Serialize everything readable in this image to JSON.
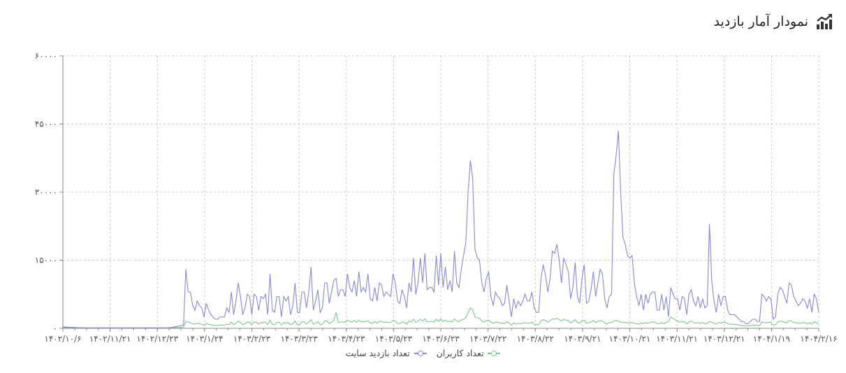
{
  "header": {
    "title": "نمودار آمار بازدید",
    "icon": "trending-chart-icon"
  },
  "colors": {
    "site_visits": "#8a86cf",
    "users": "#7fc491",
    "grid": "#cccccc",
    "axis": "#888888"
  },
  "chart_data": {
    "type": "line",
    "title": "نمودار آمار بازدید",
    "x_tick_labels": [
      "۱۴۰۲/۱۰/۶",
      "۱۴۰۲/۱۱/۲۱",
      "۱۴۰۲/۱۲/۲۳",
      "۱۴۰۳/۱/۲۴",
      "۱۴۰۳/۲/۲۳",
      "۱۴۰۳/۳/۲۳",
      "۱۴۰۳/۴/۲۳",
      "۱۴۰۳/۵/۲۳",
      "۱۴۰۳/۶/۲۳",
      "۱۴۰۳/۷/۲۲",
      "۱۴۰۳/۸/۲۲",
      "۱۴۰۳/۹/۲۱",
      "۱۴۰۳/۱۰/۲۱",
      "۱۴۰۳/۱۱/۲۱",
      "۱۴۰۳/۱۲/۲۱",
      "۱۴۰۴/۱/۱۹",
      "۱۴۰۴/۲/۱۶"
    ],
    "y_tick_labels": [
      "۰",
      "۱۵۰۰۰",
      "۳۰۰۰۰",
      "۴۵۰۰۰",
      "۶۰۰۰۰"
    ],
    "y_ticks": [
      0,
      15000,
      30000,
      45000,
      60000
    ],
    "ylim": [
      0,
      60000
    ],
    "grid": true,
    "legend": "bottom-center",
    "series": [
      {
        "name": "تعداد بازدید سایت",
        "color": "#8a86cf",
        "values": [
          300,
          300,
          250,
          200,
          200,
          200,
          150,
          150,
          120,
          100,
          100,
          100,
          100,
          100,
          100,
          100,
          100,
          100,
          100,
          100,
          100,
          100,
          100,
          100,
          100,
          100,
          100,
          100,
          100,
          100,
          100,
          100,
          100,
          100,
          100,
          100,
          100,
          100,
          100,
          100,
          100,
          100,
          100,
          100,
          100,
          100,
          100,
          150,
          200,
          300,
          400,
          500,
          600,
          700,
          13000,
          8000,
          8000,
          5000,
          4000,
          6000,
          5000,
          4500,
          2500,
          5500,
          4000,
          3000,
          2500,
          2000,
          2000,
          2500,
          2500,
          2500,
          4500,
          3500,
          8000,
          3000,
          6000,
          10000,
          7000,
          3000,
          4500,
          7500,
          7000,
          3000,
          7500,
          7000,
          4000,
          7000,
          6500,
          7500,
          3000,
          12000,
          4000,
          3500,
          7000,
          7000,
          2500,
          7000,
          6000,
          7000,
          3000,
          5000,
          10000,
          3500,
          3500,
          8000,
          8000,
          4500,
          8000,
          13500,
          4000,
          6000,
          8500,
          3500,
          4500,
          10000,
          10000,
          5500,
          8000,
          10500,
          11000,
          7000,
          8500,
          8500,
          7000,
          12000,
          9000,
          8000,
          10500,
          7000,
          12500,
          8000,
          9000,
          8000,
          12000,
          6500,
          6000,
          9000,
          6000,
          10000,
          9500,
          7000,
          8000,
          7500,
          7000,
          12000,
          10000,
          6000,
          5500,
          8500,
          7000,
          4500,
          10000,
          8000,
          15500,
          7500,
          10000,
          15500,
          10000,
          16500,
          8500,
          9000,
          9000,
          8000,
          16000,
          9500,
          16500,
          9000,
          13500,
          8500,
          10500,
          8000,
          17000,
          10000,
          9000,
          13000,
          16000,
          19000,
          30000,
          37000,
          33000,
          17500,
          15500,
          15000,
          10000,
          8000,
          11000,
          12500,
          7000,
          5000,
          8000,
          7000,
          6500,
          5000,
          5500,
          9500,
          6000,
          2500,
          6500,
          4500,
          6000,
          5000,
          6000,
          7500,
          6000,
          6000,
          8000,
          4500,
          3500,
          3500,
          11000,
          14000,
          11500,
          8000,
          11000,
          17000,
          16500,
          18500,
          15000,
          10000,
          15500,
          14000,
          12500,
          6500,
          9000,
          14500,
          7000,
          5500,
          11000,
          14000,
          5500,
          6000,
          8500,
          12500,
          7000,
          10000,
          13000,
          12000,
          6500,
          4500,
          7000,
          7500,
          34000,
          38000,
          43500,
          30000,
          20000,
          18500,
          16000,
          15500,
          16000,
          10000,
          7000,
          5000,
          7500,
          4000,
          7500,
          5500,
          7500,
          8000,
          8000,
          4000,
          4000,
          7500,
          4000,
          7000,
          2500,
          9000,
          7500,
          6500,
          6500,
          4000,
          7000,
          6500,
          3000,
          7500,
          8500,
          6000,
          5000,
          7000,
          4500,
          6500,
          4500,
          5000,
          23000,
          10500,
          6000,
          3500,
          7500,
          5000,
          7000,
          7000,
          4000,
          3000,
          3000,
          3000,
          2500,
          2000,
          1500,
          1500,
          1000,
          1000,
          1500,
          2000,
          2000,
          1500,
          1500,
          7500,
          7000,
          6000,
          7000,
          6500,
          2000,
          2500,
          7500,
          9000,
          8500,
          7000,
          5500,
          10000,
          9500,
          7000,
          6000,
          5000,
          5500,
          6500,
          6000,
          4500,
          6500,
          3500,
          7500,
          6500,
          3500
        ]
      },
      {
        "name": "تعداد کاربران",
        "color": "#7fc491",
        "values": [
          150,
          150,
          150,
          100,
          100,
          100,
          80,
          80,
          80,
          60,
          60,
          60,
          60,
          60,
          60,
          60,
          60,
          60,
          60,
          60,
          60,
          60,
          60,
          60,
          60,
          60,
          60,
          60,
          60,
          60,
          60,
          60,
          60,
          60,
          60,
          60,
          60,
          60,
          60,
          60,
          60,
          60,
          60,
          60,
          60,
          60,
          60,
          80,
          100,
          120,
          150,
          180,
          200,
          250,
          1500,
          1400,
          1200,
          1000,
          900,
          1100,
          1000,
          900,
          700,
          1100,
          900,
          800,
          700,
          600,
          600,
          700,
          700,
          700,
          900,
          800,
          1400,
          800,
          1100,
          1600,
          1300,
          800,
          1000,
          1400,
          1300,
          800,
          1400,
          1300,
          900,
          1300,
          1200,
          1400,
          800,
          1800,
          900,
          800,
          1300,
          1300,
          700,
          1300,
          1100,
          1300,
          800,
          1000,
          1600,
          800,
          800,
          1400,
          1400,
          900,
          1400,
          1900,
          900,
          1100,
          1500,
          800,
          900,
          1600,
          1600,
          1000,
          1400,
          1700,
          3500,
          1300,
          1400,
          1400,
          1300,
          1800,
          1500,
          1400,
          1700,
          1300,
          1800,
          1400,
          1500,
          1400,
          1700,
          1200,
          1100,
          1500,
          1100,
          1600,
          1500,
          1300,
          1400,
          1300,
          1300,
          1700,
          1600,
          1100,
          1000,
          1400,
          1300,
          900,
          1600,
          1400,
          2000,
          1300,
          1600,
          2000,
          1600,
          2100,
          1400,
          1500,
          1500,
          1400,
          2000,
          1500,
          2100,
          1500,
          1800,
          1400,
          1600,
          1400,
          2100,
          1600,
          1500,
          1800,
          2000,
          2400,
          3500,
          4500,
          4000,
          2500,
          2300,
          2200,
          1600,
          1400,
          1700,
          1800,
          1300,
          1100,
          1400,
          1300,
          1200,
          1100,
          1100,
          1500,
          1200,
          700,
          1200,
          900,
          1100,
          1000,
          1100,
          1300,
          1100,
          1100,
          1400,
          900,
          800,
          800,
          1600,
          1900,
          1700,
          1400,
          1600,
          2100,
          2000,
          2200,
          1900,
          1600,
          2000,
          1800,
          1700,
          1200,
          1500,
          1900,
          1300,
          1100,
          1600,
          1800,
          1100,
          1200,
          1400,
          1700,
          1300,
          1500,
          1700,
          1600,
          1200,
          900,
          1300,
          1300,
          1600,
          1700,
          1600,
          1400,
          1300,
          1300,
          1200,
          1200,
          1300,
          1100,
          1000,
          900,
          1200,
          1000,
          1300,
          1100,
          1300,
          1400,
          1400,
          1000,
          1000,
          1300,
          1000,
          1300,
          1500,
          2500,
          2200,
          1800,
          1600,
          1300,
          1500,
          1400,
          1000,
          1400,
          1600,
          1300,
          1100,
          1300,
          1000,
          1300,
          1000,
          1100,
          1500,
          1300,
          1100,
          900,
          1300,
          1100,
          1300,
          1300,
          1000,
          900,
          900,
          900,
          800,
          700,
          600,
          600,
          500,
          500,
          600,
          700,
          700,
          600,
          600,
          1400,
          1300,
          1200,
          1300,
          1300,
          700,
          800,
          1400,
          1600,
          1500,
          1300,
          1200,
          1700,
          1600,
          1300,
          1200,
          1100,
          1100,
          1300,
          1200,
          1000,
          1300,
          900,
          1400,
          1300,
          900
        ]
      }
    ]
  }
}
